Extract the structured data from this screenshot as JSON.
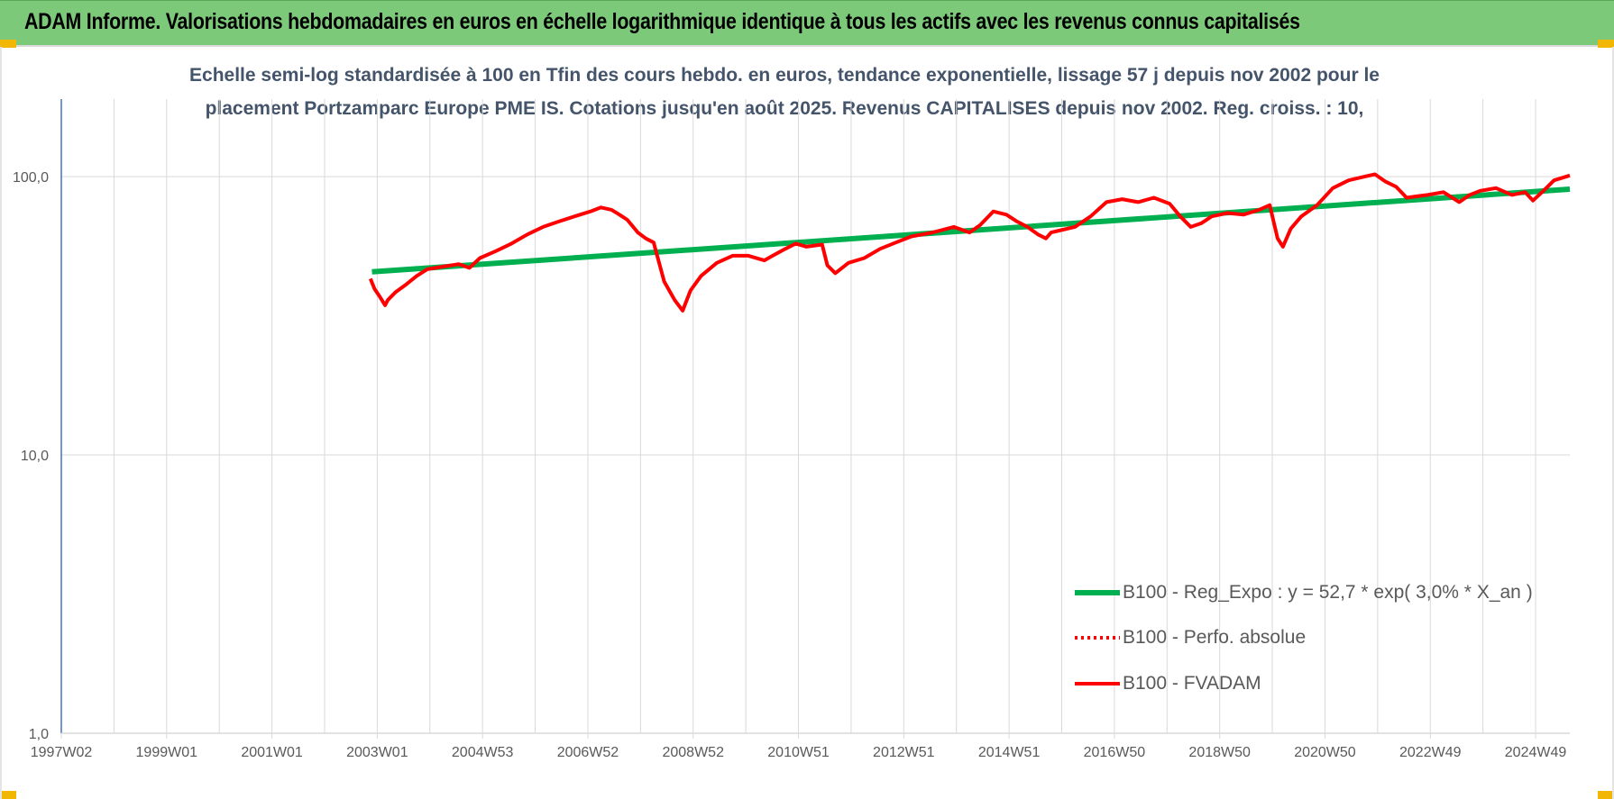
{
  "header": {
    "title": "ADAM Informe. Valorisations hebdomadaires en euros en échelle logarithmique identique à tous les actifs avec les revenus connus capitalisés"
  },
  "colors": {
    "banner": "#7dc97a",
    "regression": "#00b050",
    "series": "#ff0000",
    "grid": "#d9d9d9",
    "axis": "#4472c4",
    "title_text": "#44546a"
  },
  "chart_data": {
    "type": "line",
    "title_lines": [
      "Echelle semi-log standardisée à 100 en Tfin des cours hebdo. en euros, tendance exponentielle, lissage 57 j depuis nov 2002 pour le",
      "placement Portzamparc Europe PME IS.  Cotations jusqu'en août 2025. Revenus CAPITALISES depuis nov 2002.  Reg. croiss. : 10,"
    ],
    "y_scale": "log",
    "ylim": [
      1,
      190
    ],
    "y_ticks": [
      1,
      10,
      100
    ],
    "y_tick_labels": [
      "1,0",
      "10,0",
      "100,0"
    ],
    "xlim": [
      1997.05,
      2025.7
    ],
    "x_ticks": [
      1997.05,
      1999.05,
      2001.05,
      2003.05,
      2005.05,
      2007.05,
      2009.05,
      2011.05,
      2013.05,
      2015.05,
      2017.05,
      2019.05,
      2021.05,
      2023.05,
      2025.05
    ],
    "x_tick_labels": [
      "1997W02",
      "1999W01",
      "2001W01",
      "2003W01",
      "2004W53",
      "2006W52",
      "2008W52",
      "2010W51",
      "2012W51",
      "2014W51",
      "2016W50",
      "2018W50",
      "2020W50",
      "2022W49",
      "2024W49"
    ],
    "grid": "vertical",
    "legend_position": "bottom-right",
    "series": [
      {
        "name": "B100 - Reg_Expo : y = 52,7 * exp( 3,0% *  X_an )",
        "style": "solid-thick",
        "color": "#00b050",
        "x": [
          2002.95,
          2025.7
        ],
        "y": [
          45.5,
          90.2
        ]
      },
      {
        "name": "B100 - Perfo. absolue",
        "style": "dotted",
        "color": "#ff0000",
        "x": [],
        "y": []
      },
      {
        "name": "B100 - FVADAM",
        "style": "solid",
        "color": "#ff0000",
        "x": [
          2002.92,
          2003.0,
          2003.1,
          2003.2,
          2003.25,
          2003.4,
          2003.6,
          2003.8,
          2004.0,
          2004.3,
          2004.6,
          2004.8,
          2005.0,
          2005.3,
          2005.6,
          2005.9,
          2006.2,
          2006.5,
          2006.8,
          2007.1,
          2007.3,
          2007.5,
          2007.65,
          2007.8,
          2008.0,
          2008.15,
          2008.3,
          2008.5,
          2008.7,
          2008.85,
          2009.0,
          2009.2,
          2009.5,
          2009.8,
          2010.1,
          2010.4,
          2010.6,
          2010.8,
          2011.0,
          2011.2,
          2011.5,
          2011.6,
          2011.75,
          2012.0,
          2012.3,
          2012.6,
          2012.9,
          2013.2,
          2013.6,
          2014.0,
          2014.3,
          2014.5,
          2014.75,
          2015.0,
          2015.2,
          2015.4,
          2015.6,
          2015.75,
          2015.85,
          2016.0,
          2016.3,
          2016.6,
          2016.9,
          2017.2,
          2017.5,
          2017.8,
          2018.1,
          2018.3,
          2018.5,
          2018.7,
          2018.9,
          2019.2,
          2019.5,
          2019.8,
          2020.0,
          2020.15,
          2020.25,
          2020.4,
          2020.6,
          2020.9,
          2021.2,
          2021.5,
          2021.8,
          2022.0,
          2022.2,
          2022.4,
          2022.6,
          2022.8,
          2023.0,
          2023.3,
          2023.6,
          2023.8,
          2024.0,
          2024.3,
          2024.6,
          2024.85,
          2025.0,
          2025.2,
          2025.4,
          2025.7
        ],
        "y": [
          43.0,
          39.5,
          37.0,
          34.5,
          36.0,
          38.5,
          41.0,
          44.0,
          46.5,
          47.5,
          48.5,
          47.0,
          51.0,
          54.0,
          57.5,
          62.0,
          66.0,
          69.0,
          72.0,
          75.0,
          77.5,
          76.0,
          73.0,
          70.0,
          63.0,
          60.0,
          58.0,
          42.0,
          36.0,
          33.0,
          39.0,
          44.0,
          49.0,
          52.0,
          52.0,
          50.0,
          52.5,
          55.0,
          57.5,
          56.0,
          57.0,
          48.0,
          45.0,
          49.0,
          51.0,
          55.0,
          58.0,
          61.0,
          63.0,
          66.0,
          63.0,
          67.0,
          75.0,
          73.0,
          69.0,
          66.0,
          62.0,
          60.0,
          63.0,
          64.0,
          66.0,
          72.0,
          81.0,
          83.0,
          81.0,
          84.0,
          80.0,
          72.0,
          66.0,
          68.0,
          72.0,
          74.0,
          73.0,
          76.0,
          79.0,
          60.0,
          56.0,
          65.0,
          72.0,
          79.0,
          91.0,
          97.0,
          100.0,
          102.0,
          96.0,
          92.0,
          84.0,
          85.0,
          86.0,
          88.0,
          81.0,
          86.0,
          89.0,
          91.0,
          86.0,
          88.0,
          82.0,
          89.0,
          97.0,
          101.0
        ]
      }
    ]
  }
}
